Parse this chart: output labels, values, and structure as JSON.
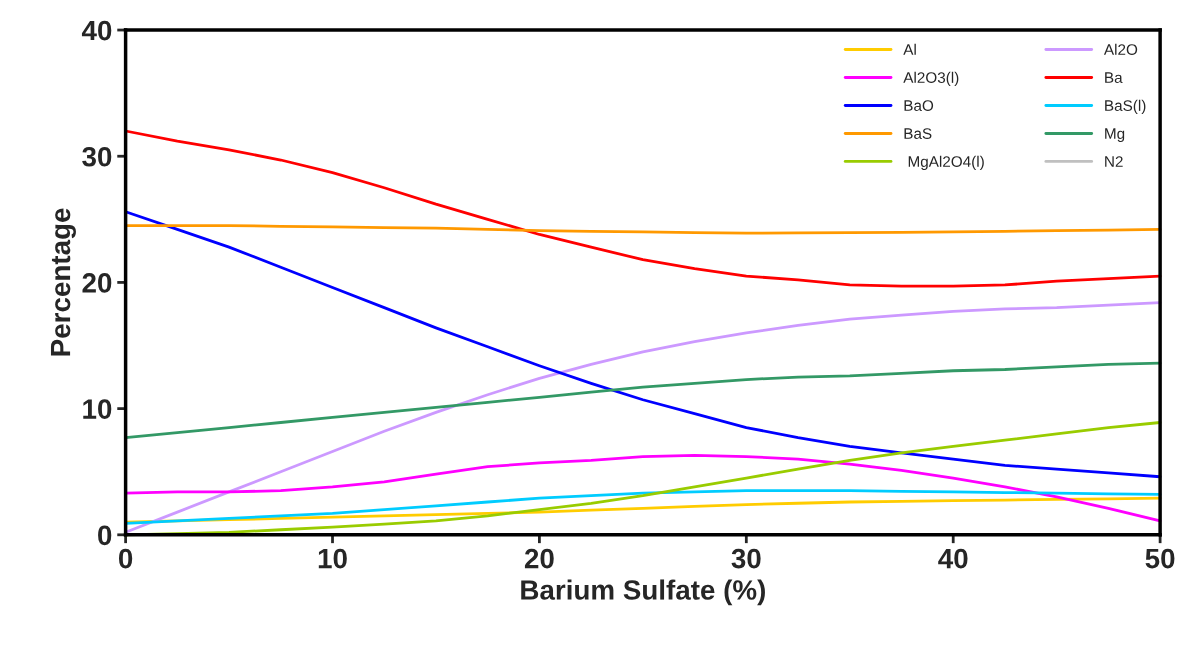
{
  "chart_data": {
    "type": "line",
    "xlabel": "Barium Sulfate (%)",
    "ylabel": "Percentage",
    "x": [
      0,
      2.5,
      5,
      7.5,
      10,
      12.5,
      15,
      17.5,
      20,
      22.5,
      25,
      27.5,
      30,
      32.5,
      35,
      37.5,
      40,
      42.5,
      45,
      47.5,
      50
    ],
    "xlim": [
      0,
      50
    ],
    "xticks": [
      0,
      10,
      20,
      30,
      40,
      50
    ],
    "ylim": [
      0,
      40
    ],
    "yticks": [
      0,
      10,
      20,
      30,
      40
    ],
    "grid": false,
    "legend": "top right",
    "marker": "none",
    "line_style": "solid",
    "series": [
      {
        "name": "Al",
        "color": "#ffcc00",
        "values": [
          1.0,
          1.1,
          1.2,
          1.3,
          1.4,
          1.5,
          1.6,
          1.7,
          1.8,
          1.95,
          2.1,
          2.25,
          2.4,
          2.5,
          2.6,
          2.65,
          2.7,
          2.75,
          2.8,
          2.85,
          2.9
        ]
      },
      {
        "name": "Al2O",
        "color": "#cc99ff",
        "values": [
          0.2,
          1.8,
          3.4,
          5.0,
          6.6,
          8.2,
          9.7,
          11.1,
          12.4,
          13.5,
          14.5,
          15.3,
          16.0,
          16.6,
          17.1,
          17.4,
          17.7,
          17.9,
          18.0,
          18.2,
          18.4
        ]
      },
      {
        "name": "Al2O3(l)",
        "color": "#ff00ff",
        "values": [
          3.3,
          3.4,
          3.4,
          3.5,
          3.8,
          4.2,
          4.8,
          5.4,
          5.7,
          5.9,
          6.2,
          6.3,
          6.2,
          6.0,
          5.6,
          5.1,
          4.5,
          3.8,
          3.0,
          2.1,
          1.1
        ]
      },
      {
        "name": "Ba",
        "color": "#ff0000",
        "values": [
          32,
          31.2,
          30.5,
          29.7,
          28.7,
          27.5,
          26.2,
          25,
          23.8,
          22.8,
          21.8,
          21.1,
          20.5,
          20.2,
          19.8,
          19.7,
          19.7,
          19.8,
          20.1,
          20.3,
          20.5
        ]
      },
      {
        "name": "BaO",
        "color": "#0000ff",
        "values": [
          25.6,
          24.2,
          22.8,
          21.2,
          19.6,
          18.0,
          16.4,
          14.9,
          13.4,
          12.0,
          10.7,
          9.6,
          8.5,
          7.7,
          7.0,
          6.5,
          6.0,
          5.5,
          5.2,
          4.9,
          4.6
        ]
      },
      {
        "name": "BaS(l)",
        "color": "#00ccff",
        "values": [
          0.9,
          1.1,
          1.3,
          1.5,
          1.7,
          2.0,
          2.3,
          2.6,
          2.9,
          3.1,
          3.3,
          3.4,
          3.5,
          3.5,
          3.5,
          3.45,
          3.4,
          3.35,
          3.3,
          3.25,
          3.2
        ]
      },
      {
        "name": "BaS",
        "color": "#ff9900",
        "values": [
          24.5,
          24.5,
          24.5,
          24.45,
          24.4,
          24.35,
          24.3,
          24.2,
          24.1,
          24.05,
          24.0,
          23.95,
          23.9,
          23.92,
          23.95,
          23.97,
          24.0,
          24.05,
          24.1,
          24.15,
          24.2
        ]
      },
      {
        "name": "Mg",
        "color": "#339966",
        "values": [
          7.7,
          8.1,
          8.5,
          8.9,
          9.3,
          9.7,
          10.1,
          10.5,
          10.9,
          11.3,
          11.7,
          12.0,
          12.3,
          12.5,
          12.6,
          12.8,
          13.0,
          13.1,
          13.3,
          13.5,
          13.6
        ]
      },
      {
        "name": " MgAl2O4(l)",
        "color": "#99cc00",
        "values": [
          0,
          0.1,
          0.2,
          0.4,
          0.6,
          0.85,
          1.1,
          1.5,
          2.0,
          2.5,
          3.1,
          3.8,
          4.5,
          5.2,
          5.9,
          6.5,
          7.0,
          7.5,
          8.0,
          8.5,
          8.9
        ]
      },
      {
        "name": "N2",
        "color": "#c0c0c0",
        "values": [
          null,
          null,
          null,
          null,
          null,
          null,
          null,
          null,
          null,
          null,
          null,
          null,
          null,
          null,
          null,
          null,
          null,
          null,
          null,
          null,
          null
        ]
      }
    ]
  }
}
